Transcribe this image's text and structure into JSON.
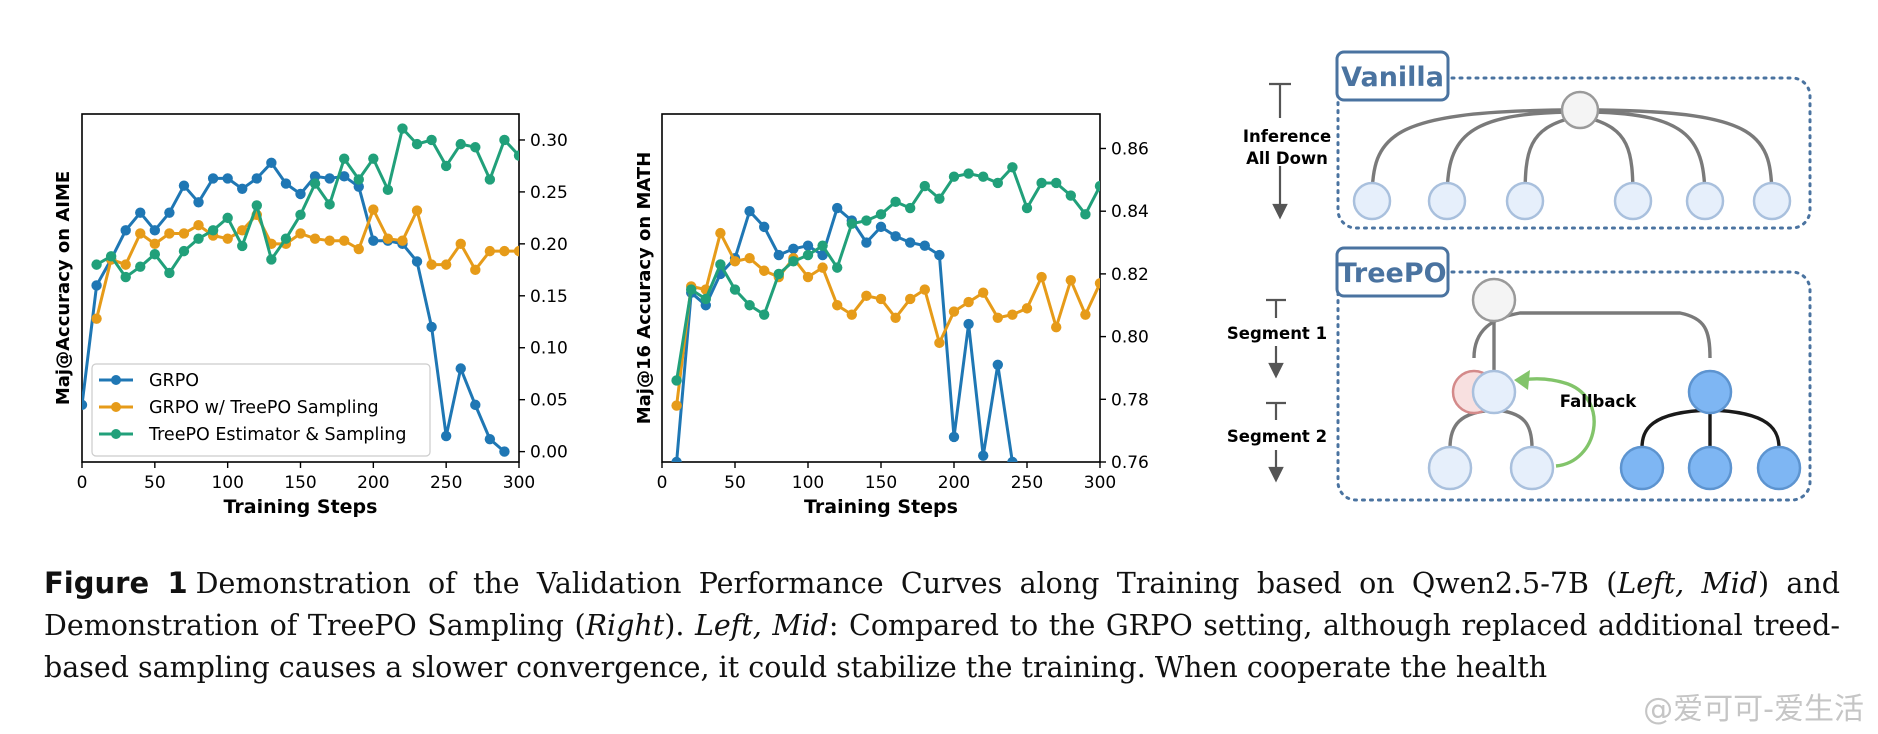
{
  "chart_data": [
    {
      "type": "line",
      "xlabel": "Training Steps",
      "ylabel": "Maj@Accuracy on AIME",
      "xlim": [
        0,
        300
      ],
      "ylim": [
        -0.01,
        0.325
      ],
      "xticks": [
        "0",
        "50",
        "100",
        "150",
        "200",
        "250",
        "300"
      ],
      "yticks": [
        "0.00",
        "0.05",
        "0.10",
        "0.15",
        "0.20",
        "0.25",
        "0.30"
      ],
      "ytick_values": [
        0,
        0.05,
        0.1,
        0.15,
        0.2,
        0.25,
        0.3
      ],
      "y_axis_side": "right",
      "legend_position": "lower-left",
      "grid": false,
      "series": [
        {
          "name": "GRPO",
          "color": "#1f77b4",
          "x": [
            0,
            10,
            20,
            30,
            40,
            50,
            60,
            70,
            80,
            90,
            100,
            110,
            120,
            130,
            140,
            150,
            160,
            170,
            180,
            190,
            200,
            210,
            220,
            230,
            240,
            250,
            260,
            270,
            280,
            290
          ],
          "values": [
            0.045,
            0.16,
            0.185,
            0.213,
            0.23,
            0.213,
            0.23,
            0.256,
            0.24,
            0.263,
            0.263,
            0.253,
            0.263,
            0.278,
            0.258,
            0.248,
            0.265,
            0.263,
            0.265,
            0.255,
            0.203,
            0.203,
            0.2,
            0.183,
            0.12,
            0.015,
            0.08,
            0.045,
            0.012,
            0.0
          ]
        },
        {
          "name": "GRPO w/ TreePO Sampling",
          "color": "#e69b19",
          "x": [
            10,
            20,
            30,
            40,
            50,
            60,
            70,
            80,
            90,
            100,
            110,
            120,
            130,
            140,
            150,
            160,
            170,
            180,
            190,
            200,
            210,
            220,
            230,
            240,
            250,
            260,
            270,
            280,
            290,
            300
          ],
          "values": [
            0.128,
            0.185,
            0.18,
            0.21,
            0.2,
            0.21,
            0.21,
            0.218,
            0.208,
            0.205,
            0.213,
            0.228,
            0.2,
            0.2,
            0.21,
            0.205,
            0.203,
            0.203,
            0.195,
            0.233,
            0.205,
            0.203,
            0.232,
            0.18,
            0.18,
            0.2,
            0.175,
            0.193,
            0.193,
            0.193
          ]
        },
        {
          "name": "TreePO Estimator & Sampling",
          "color": "#21a07a",
          "x": [
            10,
            20,
            30,
            40,
            50,
            60,
            70,
            80,
            90,
            100,
            110,
            120,
            130,
            140,
            150,
            160,
            170,
            180,
            190,
            200,
            210,
            220,
            230,
            240,
            250,
            260,
            270,
            280,
            290,
            300
          ],
          "values": [
            0.18,
            0.188,
            0.168,
            0.178,
            0.19,
            0.172,
            0.193,
            0.205,
            0.213,
            0.225,
            0.198,
            0.237,
            0.185,
            0.205,
            0.228,
            0.258,
            0.238,
            0.282,
            0.262,
            0.282,
            0.252,
            0.311,
            0.296,
            0.3,
            0.275,
            0.296,
            0.293,
            0.262,
            0.3,
            0.285
          ]
        }
      ]
    },
    {
      "type": "line",
      "xlabel": "Training Steps",
      "ylabel": "Maj@16 Accuracy on MATH",
      "xlim": [
        0,
        300
      ],
      "ylim": [
        0.76,
        0.871
      ],
      "xticks": [
        "0",
        "50",
        "100",
        "150",
        "200",
        "250",
        "300"
      ],
      "yticks": [
        "0.76",
        "0.78",
        "0.80",
        "0.82",
        "0.84",
        "0.86"
      ],
      "ytick_values": [
        0.76,
        0.78,
        0.8,
        0.82,
        0.84,
        0.86
      ],
      "y_axis_side": "right",
      "grid": false,
      "series": [
        {
          "name": "GRPO",
          "color": "#1f77b4",
          "x": [
            10,
            20,
            30,
            40,
            50,
            60,
            70,
            80,
            90,
            100,
            110,
            120,
            130,
            140,
            150,
            160,
            170,
            180,
            190,
            200,
            210,
            220,
            230,
            240
          ],
          "values": [
            0.76,
            0.814,
            0.81,
            0.82,
            0.825,
            0.84,
            0.835,
            0.826,
            0.828,
            0.829,
            0.826,
            0.841,
            0.837,
            0.83,
            0.835,
            0.832,
            0.83,
            0.829,
            0.826,
            0.768,
            0.804,
            0.762,
            0.791,
            0.76
          ]
        },
        {
          "name": "GRPO w/ TreePO Sampling",
          "color": "#e69b19",
          "x": [
            10,
            20,
            30,
            40,
            50,
            60,
            70,
            80,
            90,
            100,
            110,
            120,
            130,
            140,
            150,
            160,
            170,
            180,
            190,
            200,
            210,
            220,
            230,
            240,
            250,
            260,
            270,
            280,
            290,
            300
          ],
          "values": [
            0.778,
            0.816,
            0.815,
            0.833,
            0.824,
            0.825,
            0.821,
            0.819,
            0.825,
            0.819,
            0.822,
            0.81,
            0.807,
            0.813,
            0.812,
            0.806,
            0.812,
            0.815,
            0.798,
            0.808,
            0.811,
            0.814,
            0.806,
            0.807,
            0.809,
            0.819,
            0.803,
            0.818,
            0.807,
            0.817
          ]
        },
        {
          "name": "TreePO Estimator & Sampling",
          "color": "#21a07a",
          "x": [
            10,
            20,
            30,
            40,
            50,
            60,
            70,
            80,
            90,
            100,
            110,
            120,
            130,
            140,
            150,
            160,
            170,
            180,
            190,
            200,
            210,
            220,
            230,
            240,
            250,
            260,
            270,
            280,
            290,
            300
          ],
          "values": [
            0.786,
            0.815,
            0.812,
            0.823,
            0.815,
            0.81,
            0.807,
            0.82,
            0.824,
            0.826,
            0.829,
            0.822,
            0.836,
            0.837,
            0.839,
            0.843,
            0.841,
            0.848,
            0.844,
            0.851,
            0.852,
            0.851,
            0.849,
            0.854,
            0.841,
            0.849,
            0.849,
            0.845,
            0.839,
            0.848
          ]
        }
      ]
    }
  ],
  "diagram": {
    "vanilla_title": "Vanilla",
    "inference_label_line1": "Inference",
    "inference_label_line2": "All Down",
    "treepo_title": "TreePO",
    "segment1_label": "Segment 1",
    "segment2_label": "Segment 2",
    "fallback_label": "Fallback",
    "box_color": "#4a73a0",
    "root_color": "#f4f4f4",
    "light_node_color": "#e6effb",
    "dark_node_color": "#7eb6f3",
    "red_node_color": "#f8e0e0",
    "fallback_arrow_color": "#82c46a"
  },
  "caption": {
    "label": "Figure 1",
    "text_1": "Demonstration of the Validation Performance Curves along Training based on Qwen2.5-7B (",
    "text_2": "Left, Mid",
    "text_3": ") and Demonstration of TreePO Sampling (",
    "text_4": "Right",
    "text_5": "). ",
    "text_6": "Left, Mid",
    "text_7": ": Compared to the GRPO setting, although replaced additional treed-based sampling causes a slower convergence, it could stabilize the training. When cooperate the health"
  },
  "watermark": "@爱可可-爱生活"
}
